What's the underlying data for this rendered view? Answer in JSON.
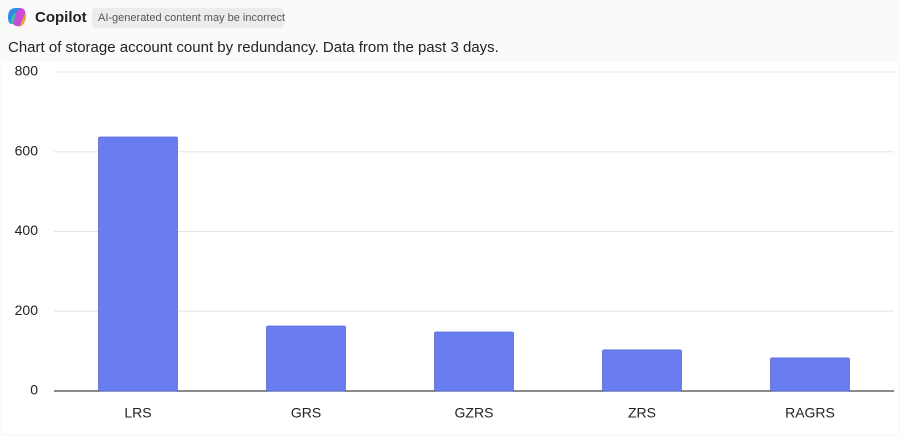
{
  "header": {
    "app_name": "Copilot",
    "disclaimer": "AI-generated content may be incorrect"
  },
  "chart_data": {
    "type": "bar",
    "title": "Chart of storage account count by redundancy. Data from the past 3 days.",
    "categories": [
      "LRS",
      "GRS",
      "GZRS",
      "ZRS",
      "RAGRS"
    ],
    "values": [
      637,
      163,
      148,
      103,
      83
    ],
    "color": "#6a7def",
    "ylim": [
      0,
      800
    ],
    "yticks": [
      0,
      200,
      400,
      600,
      800
    ],
    "grid": true
  }
}
